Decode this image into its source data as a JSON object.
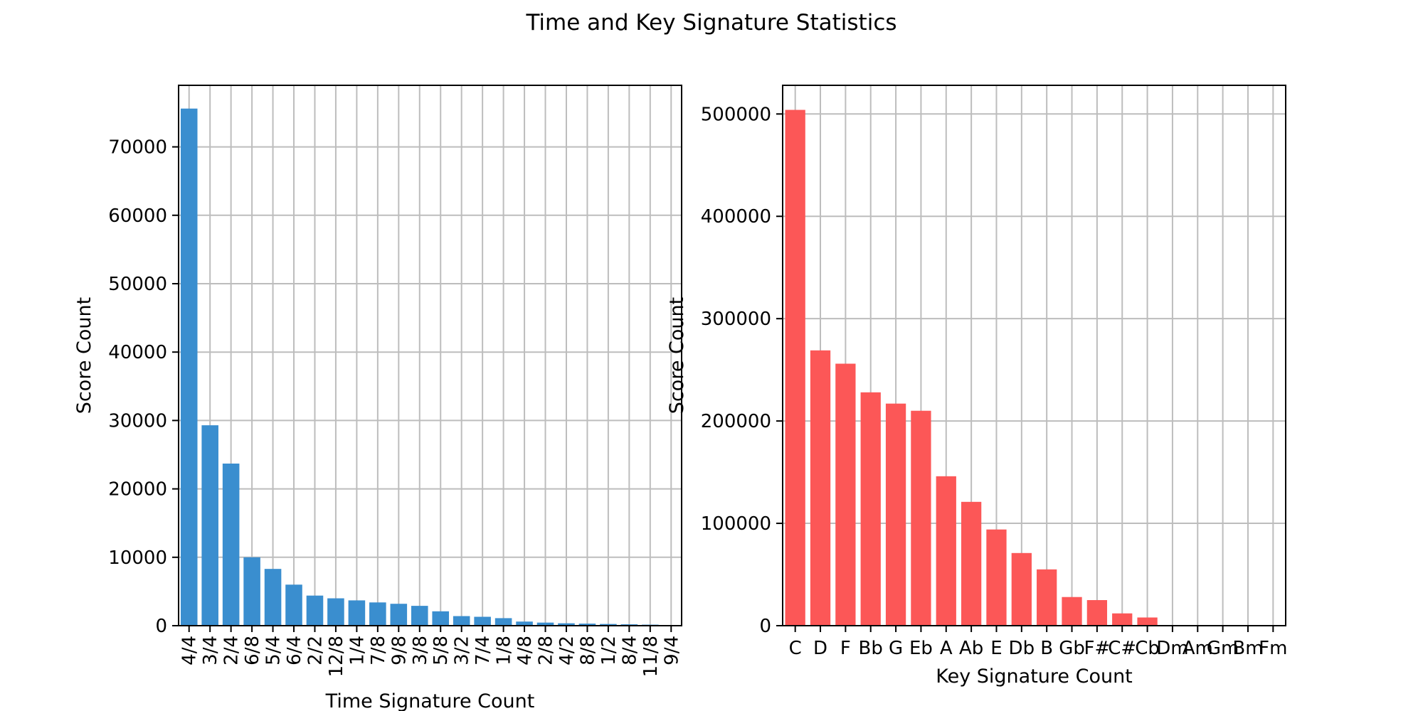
{
  "figure": {
    "title": "Time and Key Signature Statistics"
  },
  "chart_data": [
    {
      "type": "bar",
      "xlabel": "Time Signature Count",
      "ylabel": "Score Count",
      "categories": [
        "4/4",
        "3/4",
        "2/4",
        "6/8",
        "5/4",
        "6/4",
        "2/2",
        "12/8",
        "1/4",
        "7/8",
        "9/8",
        "3/8",
        "5/8",
        "3/2",
        "7/4",
        "1/8",
        "4/8",
        "2/8",
        "4/2",
        "8/8",
        "1/2",
        "8/4",
        "11/8",
        "9/4"
      ],
      "values": [
        75600,
        29300,
        23700,
        10000,
        8300,
        6000,
        4400,
        4000,
        3700,
        3400,
        3200,
        2900,
        2100,
        1400,
        1300,
        1100,
        600,
        450,
        350,
        300,
        250,
        200,
        150,
        100
      ],
      "yticks": [
        0,
        10000,
        20000,
        30000,
        40000,
        50000,
        60000,
        70000
      ],
      "ylim": [
        0,
        79000
      ],
      "color": "#3a8ecf",
      "grid": true,
      "xtick_rotation": -90
    },
    {
      "type": "bar",
      "xlabel": "Key Signature Count",
      "ylabel": "Score Count",
      "categories": [
        "C",
        "D",
        "F",
        "Bb",
        "G",
        "Eb",
        "A",
        "Ab",
        "E",
        "Db",
        "B",
        "Gb",
        "F#",
        "C#",
        "Cb",
        "Dm",
        "Am",
        "Gm",
        "Bm",
        "Fm"
      ],
      "values": [
        504000,
        269000,
        256000,
        228000,
        217000,
        210000,
        146000,
        121000,
        94000,
        71000,
        55000,
        28000,
        25000,
        12000,
        8000,
        500,
        400,
        300,
        200,
        150
      ],
      "yticks": [
        0,
        100000,
        200000,
        300000,
        400000,
        500000
      ],
      "ylim": [
        0,
        528000
      ],
      "color": "#fc5757",
      "grid": true,
      "xtick_rotation": 0
    }
  ]
}
